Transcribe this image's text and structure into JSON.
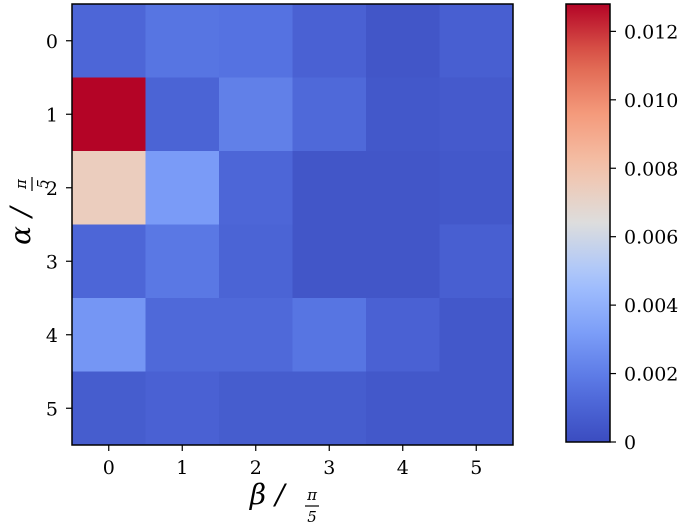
{
  "chart_data": {
    "type": "heatmap",
    "x_categories": [
      "0",
      "1",
      "2",
      "3",
      "4",
      "5"
    ],
    "y_categories": [
      "0",
      "1",
      "2",
      "3",
      "4",
      "5"
    ],
    "xlabel": {
      "symbol": "β",
      "numerator": "π",
      "denominator": "5"
    },
    "ylabel": {
      "symbol": "α",
      "numerator": "π",
      "denominator": "5"
    },
    "values": [
      [
        0.0011,
        0.0017,
        0.0016,
        0.0009,
        0.0004,
        0.0008
      ],
      [
        0.0128,
        0.001,
        0.0021,
        0.0012,
        0.0005,
        0.0006
      ],
      [
        0.0074,
        0.0031,
        0.0011,
        0.0004,
        0.0004,
        0.0005
      ],
      [
        0.0011,
        0.0018,
        0.001,
        0.0004,
        0.0004,
        0.0008
      ],
      [
        0.0029,
        0.0012,
        0.0012,
        0.0017,
        0.0009,
        0.0005
      ],
      [
        0.0007,
        0.0009,
        0.0007,
        0.0007,
        0.0005,
        0.0005
      ]
    ],
    "colormap": "coolwarm",
    "colorbar": {
      "min": 0,
      "max": 0.0128,
      "ticks": [
        0,
        0.002,
        0.004,
        0.006,
        0.008,
        0.01,
        0.012
      ],
      "tick_labels": [
        "0",
        "0.002",
        "0.004",
        "0.006",
        "0.008",
        "0.010",
        "0.012"
      ]
    }
  }
}
